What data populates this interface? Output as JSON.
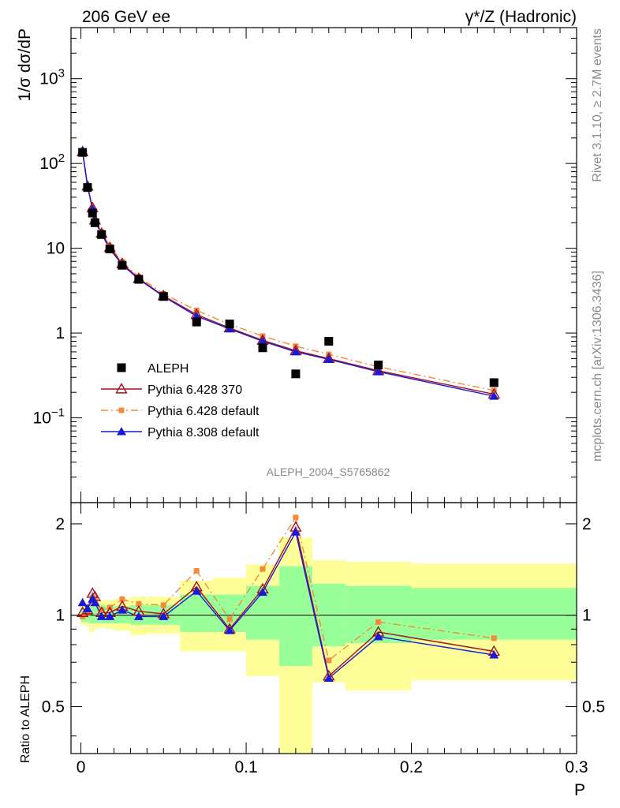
{
  "header": {
    "left_title": "206 GeV ee",
    "right_title": "γ*/Z (Hadronic)"
  },
  "side_text": {
    "rivet": "Rivet 3.1.10, ≥ 2.7M events",
    "mcplots": "mcplots.cern.ch [arXiv:1306.3436]"
  },
  "watermark": "ALEPH_2004_S5765862",
  "chart_data": [
    {
      "type": "scatter",
      "panel": "main",
      "ylabel": "1/σ  dσ/dP",
      "yscale": "log",
      "ylim": [
        0.01,
        4000
      ],
      "xlim": [
        -0.006,
        0.3
      ],
      "yticks": [
        {
          "value": 0.1,
          "label": "10",
          "exp": "−1"
        },
        {
          "value": 1,
          "label": "1",
          "exp": ""
        },
        {
          "value": 10,
          "label": "10",
          "exp": ""
        },
        {
          "value": 100,
          "label": "10",
          "exp": "2"
        },
        {
          "value": 1000,
          "label": "10",
          "exp": "3"
        }
      ],
      "legend_position": "middle-left",
      "x": [
        0.001,
        0.004,
        0.007,
        0.0085,
        0.0125,
        0.0175,
        0.025,
        0.035,
        0.05,
        0.07,
        0.09,
        0.11,
        0.13,
        0.15,
        0.18,
        0.25
      ],
      "series": [
        {
          "name": "ALEPH",
          "marker": "square",
          "color": "#000000",
          "values": [
            135,
            52,
            26,
            20,
            14.5,
            9.8,
            6.3,
            4.3,
            2.7,
            1.35,
            1.28,
            0.67,
            0.33,
            0.8,
            0.42,
            0.26
          ]
        },
        {
          "name": "Pythia 6.428 370",
          "marker": "open-triangle",
          "color": "#a50f1e",
          "line": "solid",
          "values": [
            137,
            54,
            30,
            21.5,
            15,
            10.2,
            6.6,
            4.4,
            2.75,
            1.65,
            1.15,
            0.82,
            0.62,
            0.5,
            0.36,
            0.19
          ]
        },
        {
          "name": "Pythia 6.428 default",
          "marker": "square-small",
          "color": "#f48a3a",
          "line": "dashdot",
          "values": [
            133,
            53,
            29,
            21,
            15.5,
            10.5,
            6.9,
            4.6,
            2.9,
            1.85,
            1.27,
            0.92,
            0.7,
            0.56,
            0.4,
            0.21
          ]
        },
        {
          "name": "Pythia 8.308 default",
          "marker": "filled-triangle",
          "color": "#1a1ad6",
          "line": "solid",
          "values": [
            142,
            55,
            29,
            21,
            14.7,
            9.8,
            6.4,
            4.3,
            2.7,
            1.58,
            1.12,
            0.8,
            0.6,
            0.49,
            0.35,
            0.18
          ]
        }
      ]
    },
    {
      "type": "line",
      "panel": "ratio",
      "ylabel": "Ratio to ALEPH",
      "yscale": "log",
      "ylim": [
        0.35,
        2.35
      ],
      "xlabel": "P",
      "xticks": [
        {
          "value": 0,
          "label": "0"
        },
        {
          "value": 0.1,
          "label": "0.1"
        },
        {
          "value": 0.2,
          "label": "0.2"
        },
        {
          "value": 0.3,
          "label": "0.3"
        }
      ],
      "yticks": [
        {
          "value": 0.5,
          "label": "0.5"
        },
        {
          "value": 1,
          "label": "1"
        },
        {
          "value": 2,
          "label": "2"
        }
      ],
      "bands": [
        {
          "x0": 0,
          "x1": 0.002,
          "inner": [
            0.95,
            1.05
          ],
          "outer": [
            0.93,
            1.07
          ]
        },
        {
          "x0": 0.002,
          "x1": 0.005,
          "inner": [
            0.95,
            1.05
          ],
          "outer": [
            0.92,
            1.08
          ]
        },
        {
          "x0": 0.005,
          "x1": 0.008,
          "inner": [
            0.94,
            1.08
          ],
          "outer": [
            0.88,
            1.12
          ]
        },
        {
          "x0": 0.008,
          "x1": 0.01,
          "inner": [
            0.94,
            1.08
          ],
          "outer": [
            0.9,
            1.12
          ]
        },
        {
          "x0": 0.01,
          "x1": 0.015,
          "inner": [
            0.94,
            1.08
          ],
          "outer": [
            0.91,
            1.12
          ]
        },
        {
          "x0": 0.015,
          "x1": 0.02,
          "inner": [
            0.94,
            1.07
          ],
          "outer": [
            0.9,
            1.12
          ]
        },
        {
          "x0": 0.02,
          "x1": 0.03,
          "inner": [
            0.94,
            1.07
          ],
          "outer": [
            0.89,
            1.13
          ]
        },
        {
          "x0": 0.03,
          "x1": 0.04,
          "inner": [
            0.93,
            1.08
          ],
          "outer": [
            0.86,
            1.15
          ]
        },
        {
          "x0": 0.04,
          "x1": 0.06,
          "inner": [
            0.93,
            1.08
          ],
          "outer": [
            0.87,
            1.15
          ]
        },
        {
          "x0": 0.06,
          "x1": 0.08,
          "inner": [
            0.88,
            1.17
          ],
          "outer": [
            0.76,
            1.3
          ]
        },
        {
          "x0": 0.08,
          "x1": 0.1,
          "inner": [
            0.88,
            1.17
          ],
          "outer": [
            0.76,
            1.33
          ]
        },
        {
          "x0": 0.1,
          "x1": 0.12,
          "inner": [
            0.83,
            1.25
          ],
          "outer": [
            0.63,
            1.47
          ]
        },
        {
          "x0": 0.12,
          "x1": 0.14,
          "inner": [
            0.68,
            1.45
          ],
          "outer": [
            0.3,
            1.8
          ]
        },
        {
          "x0": 0.14,
          "x1": 0.16,
          "inner": [
            0.79,
            1.27
          ],
          "outer": [
            0.6,
            1.52
          ]
        },
        {
          "x0": 0.16,
          "x1": 0.2,
          "inner": [
            0.81,
            1.25
          ],
          "outer": [
            0.565,
            1.5
          ]
        },
        {
          "x0": 0.2,
          "x1": 0.3,
          "inner": [
            0.83,
            1.23
          ],
          "outer": [
            0.61,
            1.48
          ]
        }
      ],
      "x": [
        0.001,
        0.004,
        0.007,
        0.0085,
        0.0125,
        0.0175,
        0.025,
        0.035,
        0.05,
        0.07,
        0.09,
        0.11,
        0.13,
        0.15,
        0.18,
        0.25
      ],
      "series": [
        {
          "name": "Pythia 6.428 370",
          "marker": "open-triangle",
          "color": "#a50f1e",
          "line": "solid",
          "values": [
            1.02,
            1.04,
            1.18,
            1.15,
            1.02,
            1.02,
            1.07,
            1.03,
            1.01,
            1.24,
            0.9,
            1.22,
            1.95,
            0.63,
            0.88,
            0.76
          ]
        },
        {
          "name": "Pythia 6.428 default",
          "marker": "square-small",
          "color": "#f48a3a",
          "line": "dashdot",
          "values": [
            0.99,
            1.02,
            1.14,
            1.12,
            1.04,
            1.06,
            1.13,
            1.09,
            1.08,
            1.4,
            0.97,
            1.42,
            2.1,
            0.71,
            0.95,
            0.84
          ]
        },
        {
          "name": "Pythia 8.308 default",
          "marker": "filled-triangle",
          "color": "#1a1ad6",
          "line": "solid",
          "values": [
            1.1,
            1.05,
            1.13,
            1.1,
            0.99,
            0.99,
            1.04,
            0.99,
            0.99,
            1.2,
            0.89,
            1.19,
            1.88,
            0.62,
            0.85,
            0.74
          ]
        }
      ]
    }
  ]
}
